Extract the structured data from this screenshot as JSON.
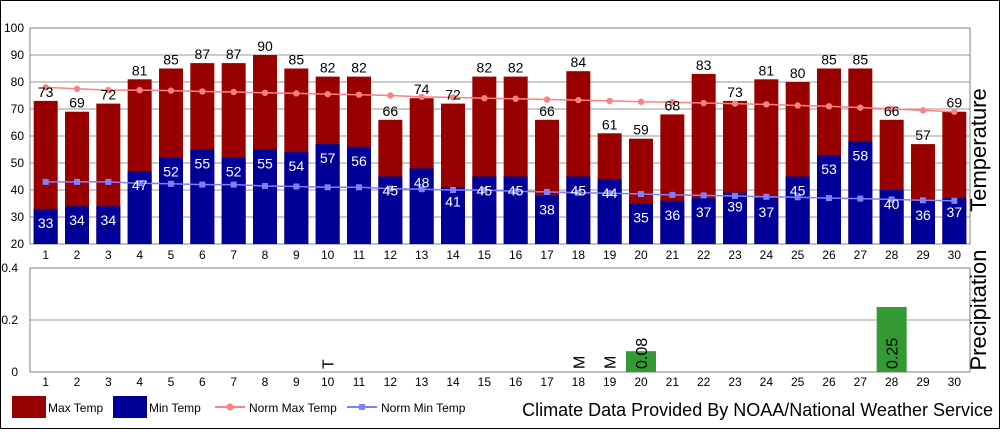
{
  "chart_data": [
    {
      "type": "bar",
      "ylabel": "Temperature",
      "ylim": [
        20,
        100
      ],
      "yticks": [
        20,
        30,
        40,
        50,
        60,
        70,
        80,
        90,
        100
      ],
      "grid": true,
      "categories": [
        "1",
        "2",
        "3",
        "4",
        "5",
        "6",
        "7",
        "8",
        "9",
        "10",
        "11",
        "12",
        "13",
        "14",
        "15",
        "16",
        "17",
        "18",
        "19",
        "20",
        "21",
        "22",
        "23",
        "24",
        "25",
        "26",
        "27",
        "28",
        "29",
        "30"
      ],
      "series": [
        {
          "name": "Max Temp",
          "kind": "bar",
          "color": "#990000",
          "values": [
            73,
            69,
            72,
            81,
            85,
            87,
            87,
            90,
            85,
            82,
            82,
            66,
            74,
            72,
            82,
            82,
            66,
            84,
            61,
            59,
            68,
            83,
            73,
            81,
            80,
            85,
            85,
            66,
            57,
            69
          ]
        },
        {
          "name": "Min Temp",
          "kind": "bar",
          "color": "#000099",
          "values": [
            33,
            34,
            34,
            47,
            52,
            55,
            52,
            55,
            54,
            57,
            56,
            45,
            48,
            41,
            45,
            45,
            38,
            45,
            44,
            35,
            36,
            37,
            39,
            37,
            45,
            53,
            58,
            40,
            36,
            37
          ]
        },
        {
          "name": "Norm Max Temp",
          "kind": "line",
          "color": "#ff8080",
          "values": [
            78,
            77.5,
            77,
            77,
            76.8,
            76.5,
            76.3,
            76,
            75.8,
            75.5,
            75.3,
            75,
            74.5,
            74.3,
            74,
            73.8,
            73.5,
            73.3,
            73,
            72.7,
            72.5,
            72.2,
            72,
            71.7,
            71.3,
            71,
            70.5,
            70,
            69.5,
            69
          ]
        },
        {
          "name": "Norm Min Temp",
          "kind": "line",
          "color": "#8080ff",
          "values": [
            43,
            43,
            43,
            42.5,
            42.3,
            42,
            42,
            41.5,
            41.3,
            41,
            41,
            40.5,
            40.3,
            40,
            40,
            39.5,
            39.3,
            39,
            38.8,
            38.5,
            38.2,
            38,
            37.8,
            37.5,
            37.3,
            37,
            36.8,
            36.5,
            36.2,
            36
          ]
        }
      ]
    },
    {
      "type": "bar",
      "ylabel": "Precipitation",
      "ylim": [
        0,
        0.4
      ],
      "yticks": [
        "0",
        "0.2",
        "0.4"
      ],
      "grid": true,
      "categories": [
        "1",
        "2",
        "3",
        "4",
        "5",
        "6",
        "7",
        "8",
        "9",
        "10",
        "11",
        "12",
        "13",
        "14",
        "15",
        "16",
        "17",
        "18",
        "19",
        "20",
        "21",
        "22",
        "23",
        "24",
        "25",
        "26",
        "27",
        "28",
        "29",
        "30"
      ],
      "series": [
        {
          "name": "Precipitation",
          "color": "#339933",
          "values": [
            0,
            0,
            0,
            0,
            0,
            0,
            0,
            0,
            0,
            0,
            0,
            0,
            0,
            0,
            0,
            0,
            0,
            0,
            0,
            0.08,
            0,
            0,
            0,
            0,
            0,
            0,
            0,
            0.25,
            0,
            0
          ]
        }
      ],
      "annotations": [
        {
          "day": "10",
          "text": "T"
        },
        {
          "day": "18",
          "text": "M"
        },
        {
          "day": "19",
          "text": "M"
        },
        {
          "day": "20",
          "text": "0.08"
        },
        {
          "day": "28",
          "text": "0.25"
        }
      ]
    }
  ],
  "legend": {
    "placement": "bottom-left",
    "items": [
      {
        "label": "Max Temp",
        "color": "#990000",
        "style": "box"
      },
      {
        "label": "Min Temp",
        "color": "#000099",
        "style": "box"
      },
      {
        "label": "Norm Max Temp",
        "color": "#ff8080",
        "style": "line"
      },
      {
        "label": "Norm Min Temp",
        "color": "#8080ff",
        "style": "line"
      }
    ]
  },
  "credit": "Climate Data Provided By NOAA/National Weather Service"
}
